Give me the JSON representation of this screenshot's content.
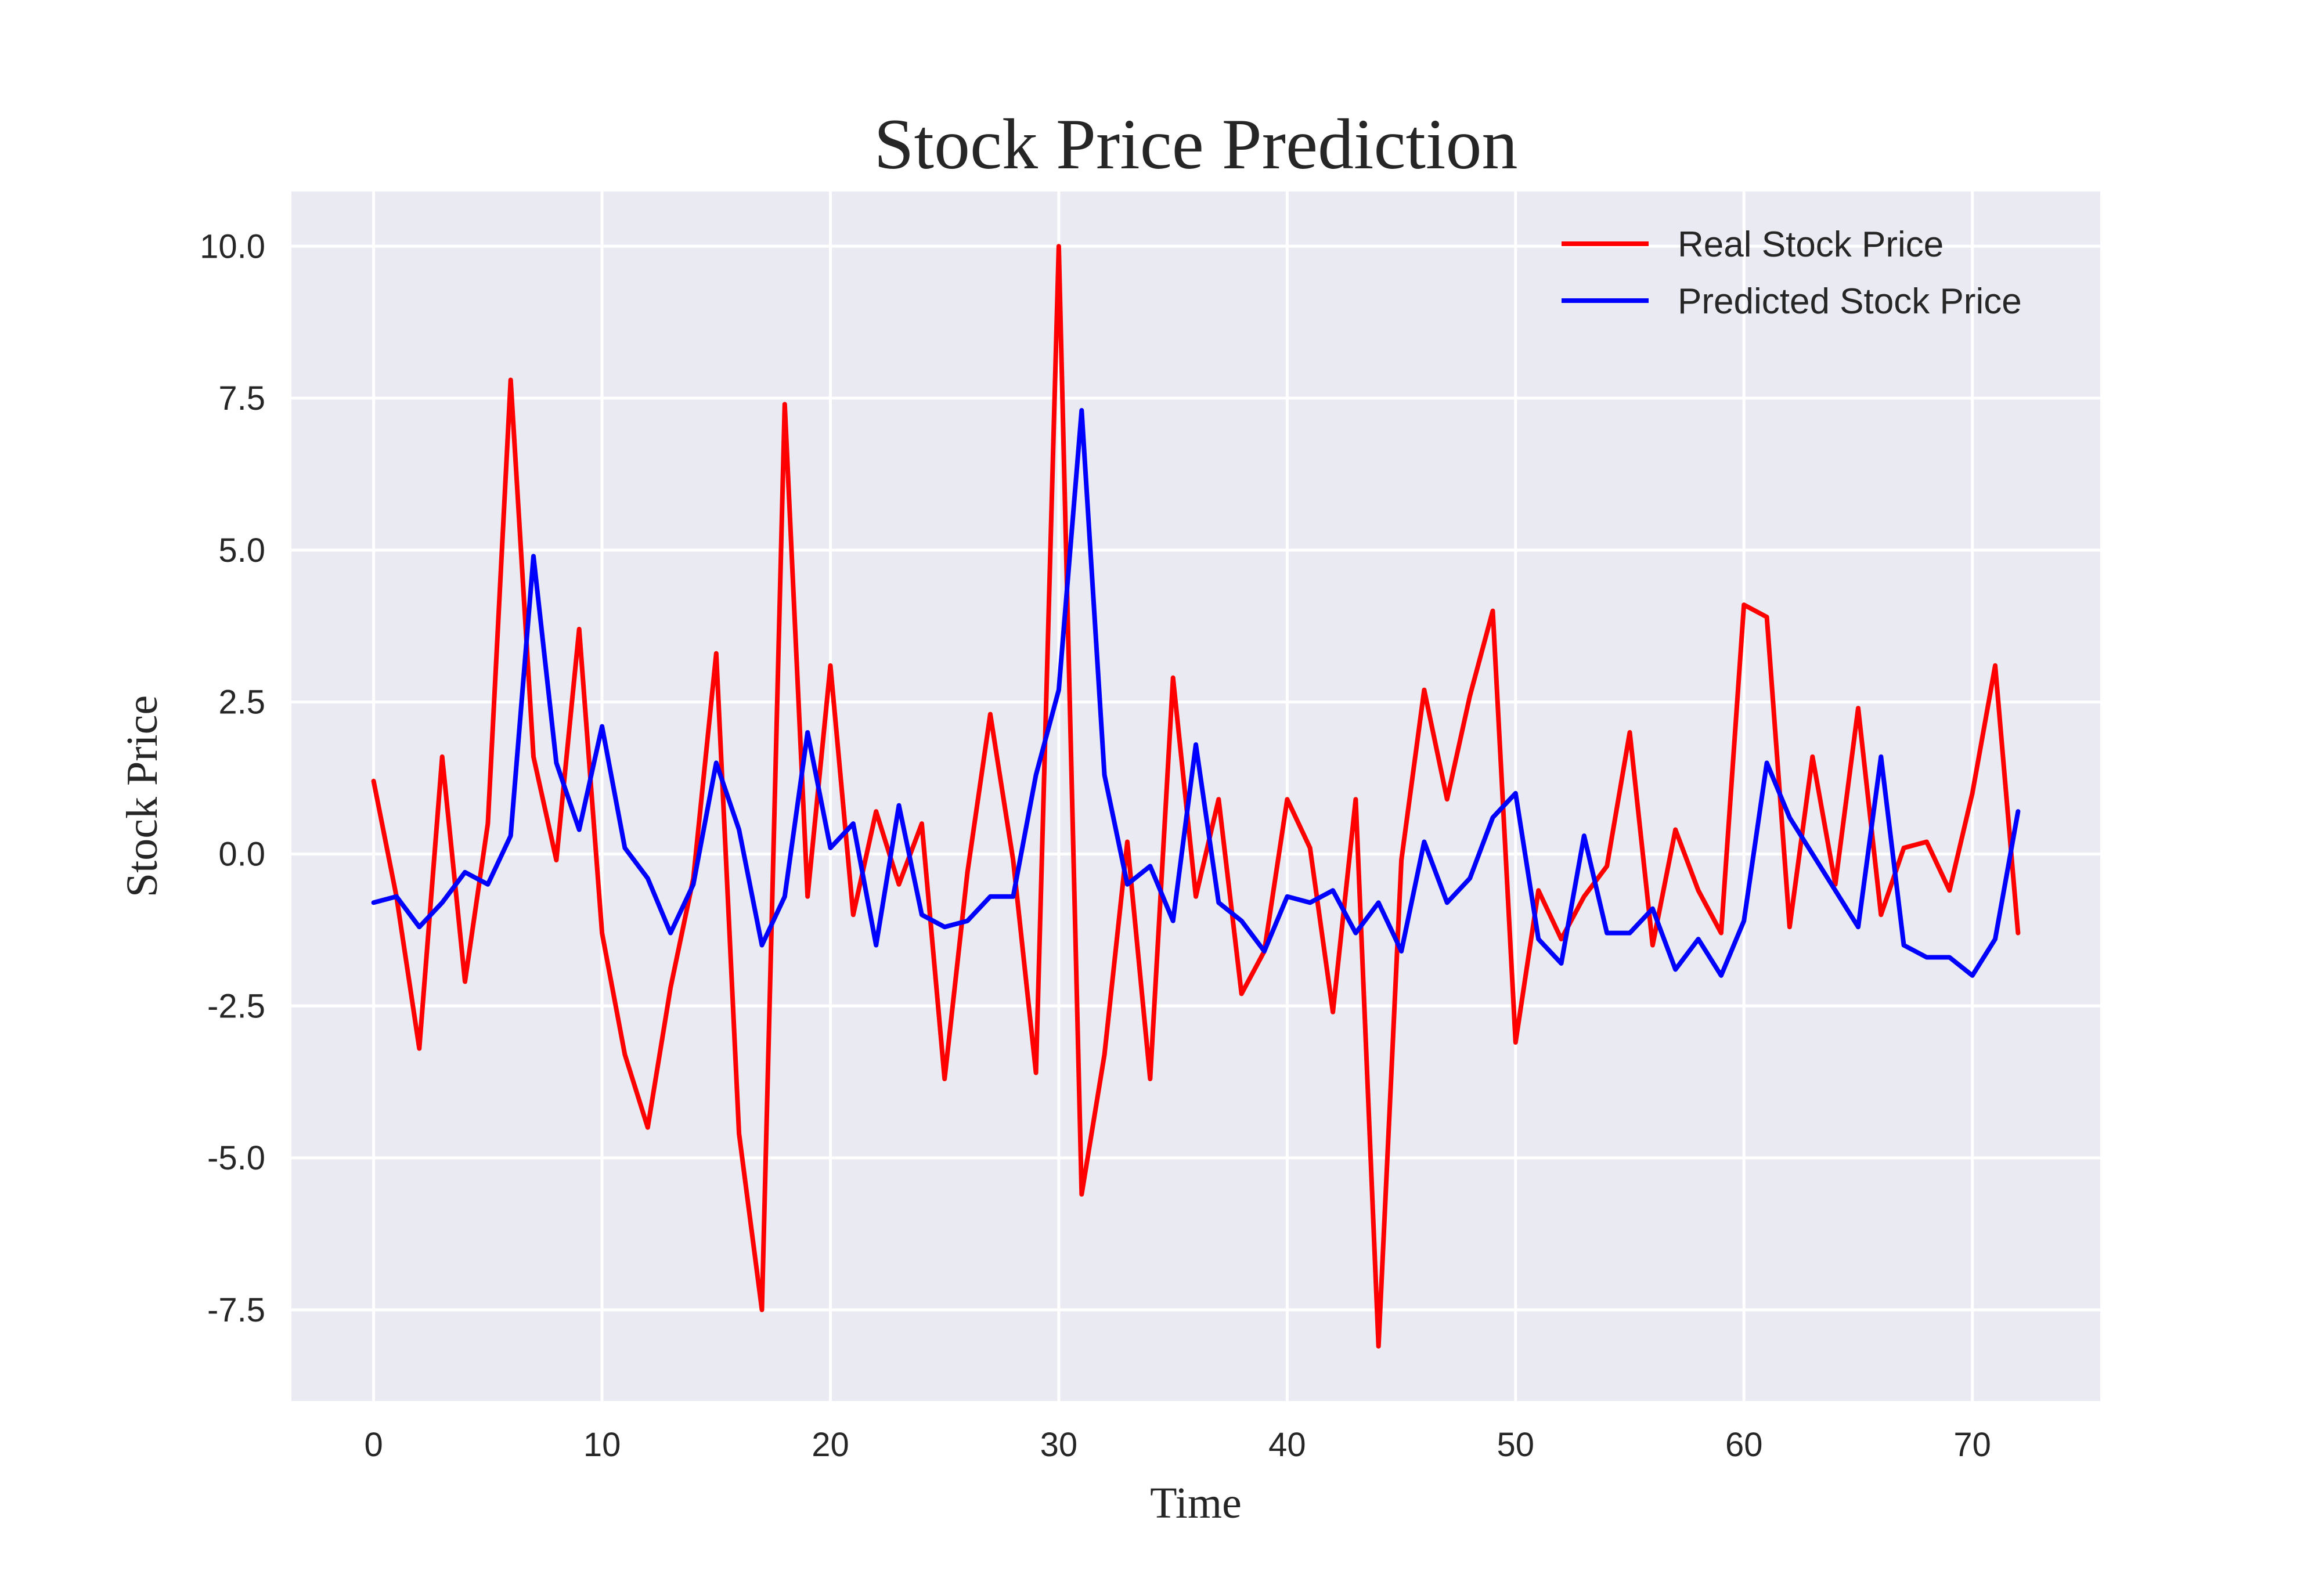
{
  "chart_data": {
    "type": "line",
    "title": "Stock Price Prediction",
    "xlabel": "Time",
    "ylabel": "Stock Price",
    "xlim": [
      -3.6,
      75.6
    ],
    "ylim": [
      -9.0,
      10.9
    ],
    "xticks": [
      0,
      10,
      20,
      30,
      40,
      50,
      60,
      70
    ],
    "yticks": [
      -7.5,
      -5.0,
      -2.5,
      0.0,
      2.5,
      5.0,
      7.5,
      10.0
    ],
    "ytick_labels": [
      "-7.5",
      "-5.0",
      "-2.5",
      "0.0",
      "2.5",
      "5.0",
      "7.5",
      "10.0"
    ],
    "xtick_labels": [
      "0",
      "10",
      "20",
      "30",
      "40",
      "50",
      "60",
      "70"
    ],
    "grid": true,
    "legend_position": "top-right",
    "background_color": "#eaeaf2",
    "series": [
      {
        "name": "Real Stock Price",
        "color": "#ff0000",
        "values": [
          1.2,
          -0.7,
          -3.2,
          1.6,
          -2.1,
          0.5,
          7.8,
          1.6,
          -0.1,
          3.7,
          -1.3,
          -3.3,
          -4.5,
          -2.2,
          -0.4,
          3.3,
          -4.6,
          -7.5,
          7.4,
          -0.7,
          3.1,
          -1.0,
          0.7,
          -0.5,
          0.5,
          -3.7,
          -0.3,
          2.3,
          -0.1,
          -3.6,
          10.0,
          -5.6,
          -3.3,
          0.2,
          -3.7,
          2.9,
          -0.7,
          0.9,
          -2.3,
          -1.6,
          0.9,
          0.1,
          -2.6,
          0.9,
          -8.1,
          -0.1,
          2.7,
          0.9,
          2.6,
          4.0,
          -3.1,
          -0.6,
          -1.4,
          -0.7,
          -0.2,
          2.0,
          -1.5,
          0.4,
          -0.6,
          -1.3,
          4.1,
          3.9,
          -1.2,
          1.6,
          -0.5,
          2.4,
          -1.0,
          0.1,
          0.2,
          -0.6,
          1.0,
          3.1,
          -1.3
        ]
      },
      {
        "name": "Predicted Stock Price",
        "color": "#0000ff",
        "values": [
          -0.8,
          -0.7,
          -1.2,
          -0.8,
          -0.3,
          -0.5,
          0.3,
          4.9,
          1.5,
          0.4,
          2.1,
          0.1,
          -0.4,
          -1.3,
          -0.5,
          1.5,
          0.4,
          -1.5,
          -0.7,
          2.0,
          0.1,
          0.5,
          -1.5,
          0.8,
          -1.0,
          -1.2,
          -1.1,
          -0.7,
          -0.7,
          1.3,
          2.7,
          7.3,
          1.3,
          -0.5,
          -0.2,
          -1.1,
          1.8,
          -0.8,
          -1.1,
          -1.6,
          -0.7,
          -0.8,
          -0.6,
          -1.3,
          -0.8,
          -1.6,
          0.2,
          -0.8,
          -0.4,
          0.6,
          1.0,
          -1.4,
          -1.8,
          0.3,
          -1.3,
          -1.3,
          -0.9,
          -1.9,
          -1.4,
          -2.0,
          -1.1,
          1.5,
          0.6,
          0.0,
          -0.6,
          -1.2,
          1.6,
          -1.5,
          -1.7,
          -1.7,
          -2.0,
          -1.4,
          0.7
        ]
      }
    ]
  }
}
